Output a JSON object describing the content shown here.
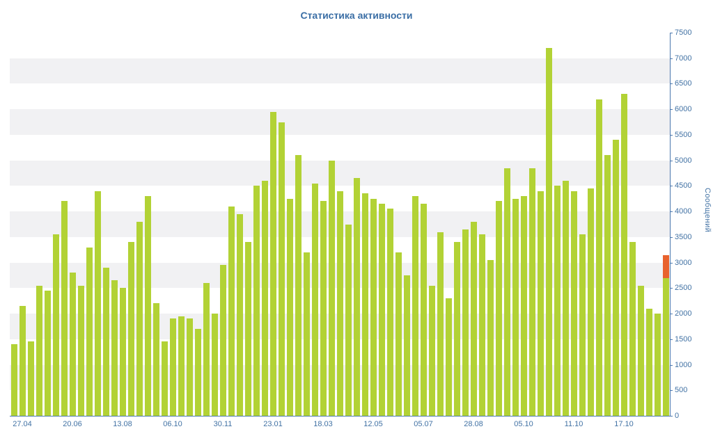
{
  "colors": {
    "bar": "#b2d235",
    "accent": "#e8622d",
    "axis": "#4a77ad",
    "tick_text": "#4272a4",
    "title": "#3a6ea5",
    "stripe": "#f1f1f3",
    "background": "#ffffff"
  },
  "chart_data": {
    "type": "bar",
    "title": "Статистика активности",
    "ylabel": "Сообщений",
    "xlabel": "",
    "ylim": [
      0,
      7500
    ],
    "ytick_step": 500,
    "y_tick_labels": [
      "0",
      "500",
      "1000",
      "1500",
      "2000",
      "2500",
      "3000",
      "3500",
      "4000",
      "4500",
      "5000",
      "5500",
      "6000",
      "6500",
      "7000",
      "7500"
    ],
    "x_tick_labels": [
      "27.04",
      "20.06",
      "13.08",
      "06.10",
      "30.11",
      "23.01",
      "18.03",
      "12.05",
      "05.07",
      "28.08",
      "05.10",
      "11.10",
      "17.10"
    ],
    "x_tick_bar_indices": [
      1,
      7,
      13,
      19,
      25,
      31,
      37,
      43,
      49,
      55,
      61,
      67,
      73
    ],
    "grid": "striped-bands",
    "legend": "none",
    "values": [
      1400,
      2150,
      1450,
      2550,
      2450,
      3550,
      4200,
      2800,
      2550,
      3300,
      4400,
      2900,
      2650,
      2500,
      3400,
      3800,
      4300,
      2200,
      1450,
      1900,
      1950,
      1900,
      1700,
      2600,
      2000,
      2950,
      4100,
      3950,
      3400,
      4500,
      4600,
      5950,
      5750,
      4250,
      5100,
      3200,
      4550,
      4200,
      5000,
      4400,
      3750,
      4650,
      4350,
      4250,
      4150,
      4050,
      3200,
      2750,
      4300,
      4150,
      2550,
      3600,
      2300,
      3400,
      3650,
      3800,
      3550,
      3050,
      4200,
      4850,
      4250,
      4300,
      4850,
      4400,
      7200,
      4500,
      4600,
      4400,
      3550,
      4450,
      6200,
      5100,
      5400,
      6300,
      3400,
      2550,
      2100,
      2000,
      2700
    ],
    "highlight_segment": {
      "bar_index": 78,
      "start": 2700,
      "end": 3150,
      "meaning": "orange top segment on last bar"
    }
  }
}
